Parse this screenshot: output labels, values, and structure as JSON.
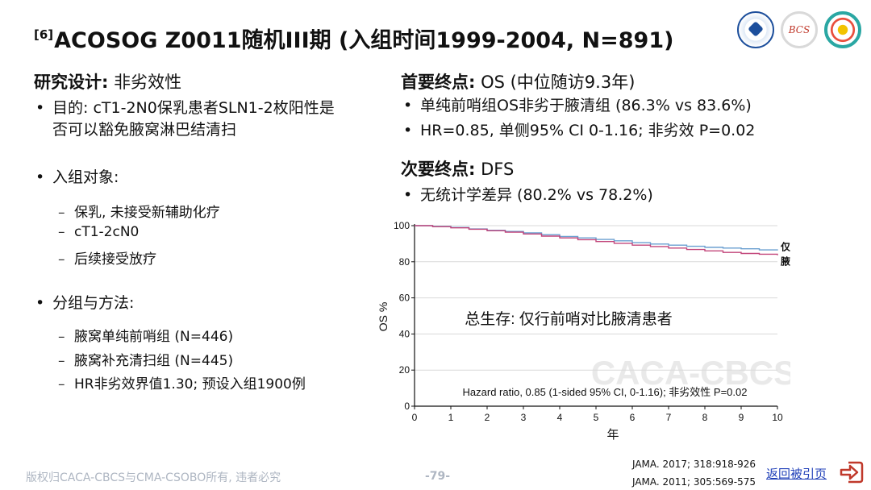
{
  "title": {
    "sup": "[6]",
    "main": "ACOSOG Z0011随机III期 (入组时间1999-2004, N=891)"
  },
  "left": {
    "design_label": "研究设计:",
    "design_value": " 非劣效性",
    "purpose": "目的: cT1-2N0保乳患者SLN1-2枚阳性是否可以豁免腋窝淋巴结清扫",
    "population_label": "入组对象:",
    "population_items": [
      "保乳, 未接受新辅助化疗",
      "cT1-2cN0",
      "后续接受放疗"
    ],
    "groups_label": "分组与方法:",
    "groups_items": [
      "腋窝单纯前哨组 (N=446)",
      "腋窝补充清扫组 (N=445)",
      "HR非劣效界值1.30; 预设入组1900例"
    ]
  },
  "right": {
    "primary_label": "首要终点:",
    "primary_value": " OS (中位随访9.3年)",
    "primary_items": [
      "单纯前哨组OS非劣于腋清组 (86.3% vs 83.6%)",
      "HR=0.85, 单侧95% CI 0-1.16; 非劣效 P=0.02"
    ],
    "secondary_label": "次要终点:",
    "secondary_value": " DFS",
    "secondary_items": [
      "无统计学差异 (80.2% vs 78.2%)"
    ]
  },
  "chart_data": {
    "type": "line",
    "title": "总生存: 仅行前哨对比腋清患者",
    "xlabel": "年",
    "ylabel": "OS %",
    "xlim": [
      0,
      10
    ],
    "ylim": [
      0,
      100
    ],
    "xticks": [
      0,
      1,
      2,
      3,
      4,
      5,
      6,
      7,
      8,
      9,
      10
    ],
    "yticks": [
      0,
      20,
      40,
      60,
      80,
      100
    ],
    "grid": true,
    "annotation": "Hazard ratio, 0.85 (1-sided 95% CI, 0-1.16); 非劣效性 P=0.02",
    "watermark": "CACA-CBCS",
    "series": [
      {
        "name": "仅行前哨",
        "color": "#6a9fd0",
        "x": [
          0,
          0.5,
          1,
          1.5,
          2,
          2.5,
          3,
          3.5,
          4,
          4.5,
          5,
          5.5,
          6,
          6.5,
          7,
          7.5,
          8,
          8.5,
          9,
          9.5,
          10
        ],
        "y": [
          100,
          99.6,
          99.0,
          98.2,
          97.4,
          96.8,
          96.0,
          95.0,
          94.0,
          93.2,
          92.4,
          91.6,
          90.6,
          89.8,
          89.2,
          88.6,
          88.0,
          87.6,
          87.2,
          86.6,
          86.3
        ]
      },
      {
        "name": "腋清",
        "color": "#c2457a",
        "x": [
          0,
          0.5,
          1,
          1.5,
          2,
          2.5,
          3,
          3.5,
          4,
          4.5,
          5,
          5.5,
          6,
          6.5,
          7,
          7.5,
          8,
          8.5,
          9,
          9.5,
          10
        ],
        "y": [
          100,
          99.4,
          98.8,
          98.0,
          97.2,
          96.4,
          95.4,
          94.2,
          93.2,
          92.2,
          91.2,
          90.2,
          89.2,
          88.4,
          87.6,
          86.8,
          86.0,
          85.2,
          84.6,
          84.2,
          83.6
        ]
      }
    ]
  },
  "footer": {
    "copyright": "版权归CACA-CBCS与CMA-CSOBO所有, 违者必究",
    "page": "-79-",
    "refs": [
      "JAMA. 2017; 318:918-926",
      "JAMA. 2011; 305:569-575"
    ],
    "back": "返回被引页"
  },
  "logos": [
    "cancer-association-logo",
    "BCS",
    "society-logo"
  ]
}
